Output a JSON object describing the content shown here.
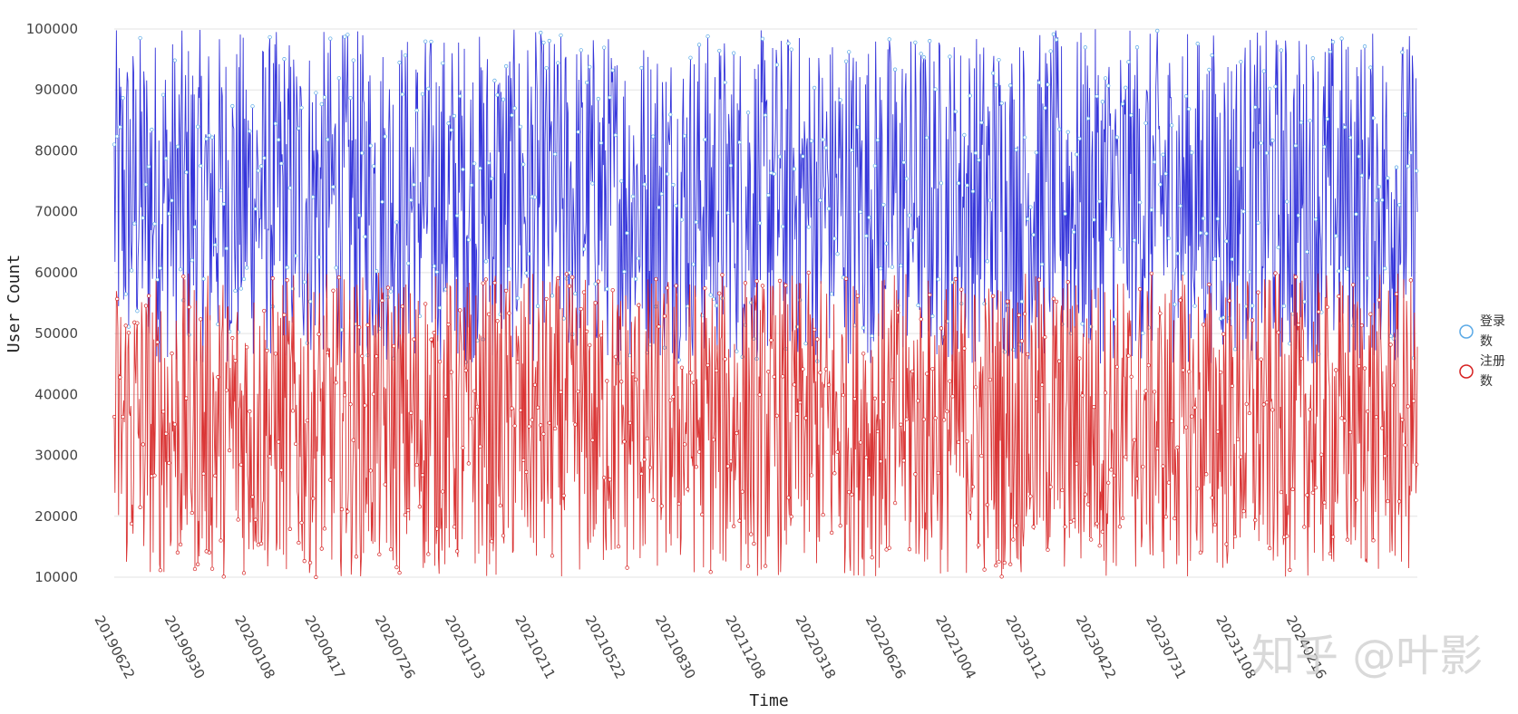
{
  "chart_data": {
    "type": "line",
    "title": "",
    "xlabel": "Time",
    "ylabel": "User Count",
    "ylim": [
      10000,
      100000
    ],
    "yticks": [
      10000,
      20000,
      30000,
      40000,
      50000,
      60000,
      70000,
      80000,
      90000,
      100000
    ],
    "xticks": [
      "20190622",
      "20190930",
      "20200108",
      "20200417",
      "20200726",
      "20201103",
      "20210211",
      "20210522",
      "20210830",
      "20211208",
      "20220318",
      "20220626",
      "20221004",
      "20230112",
      "20230422",
      "20230731",
      "20231108",
      "20240216"
    ],
    "start_date": "20190622",
    "point_count": 1810,
    "grid": "horizontal",
    "legend_position": "right",
    "series": [
      {
        "name": "登录数",
        "line_color": "#1f1fd6",
        "marker_color": "#5aa9e6",
        "value_range": [
          45000,
          100000
        ],
        "values": "pseudo-random daily values, approx. uniform over value_range"
      },
      {
        "name": "注册数",
        "line_color": "#d62020",
        "marker_color": "#d62020",
        "value_range": [
          10000,
          60000
        ],
        "values": "pseudo-random daily values, approx. uniform over value_range"
      }
    ]
  },
  "legend": {
    "items": [
      {
        "label_line1": "登录",
        "label_line2": "数",
        "color": "#5aa9e6"
      },
      {
        "label_line1": "注册",
        "label_line2": "数",
        "color": "#d62020"
      }
    ]
  },
  "watermark": "知乎 @叶影"
}
